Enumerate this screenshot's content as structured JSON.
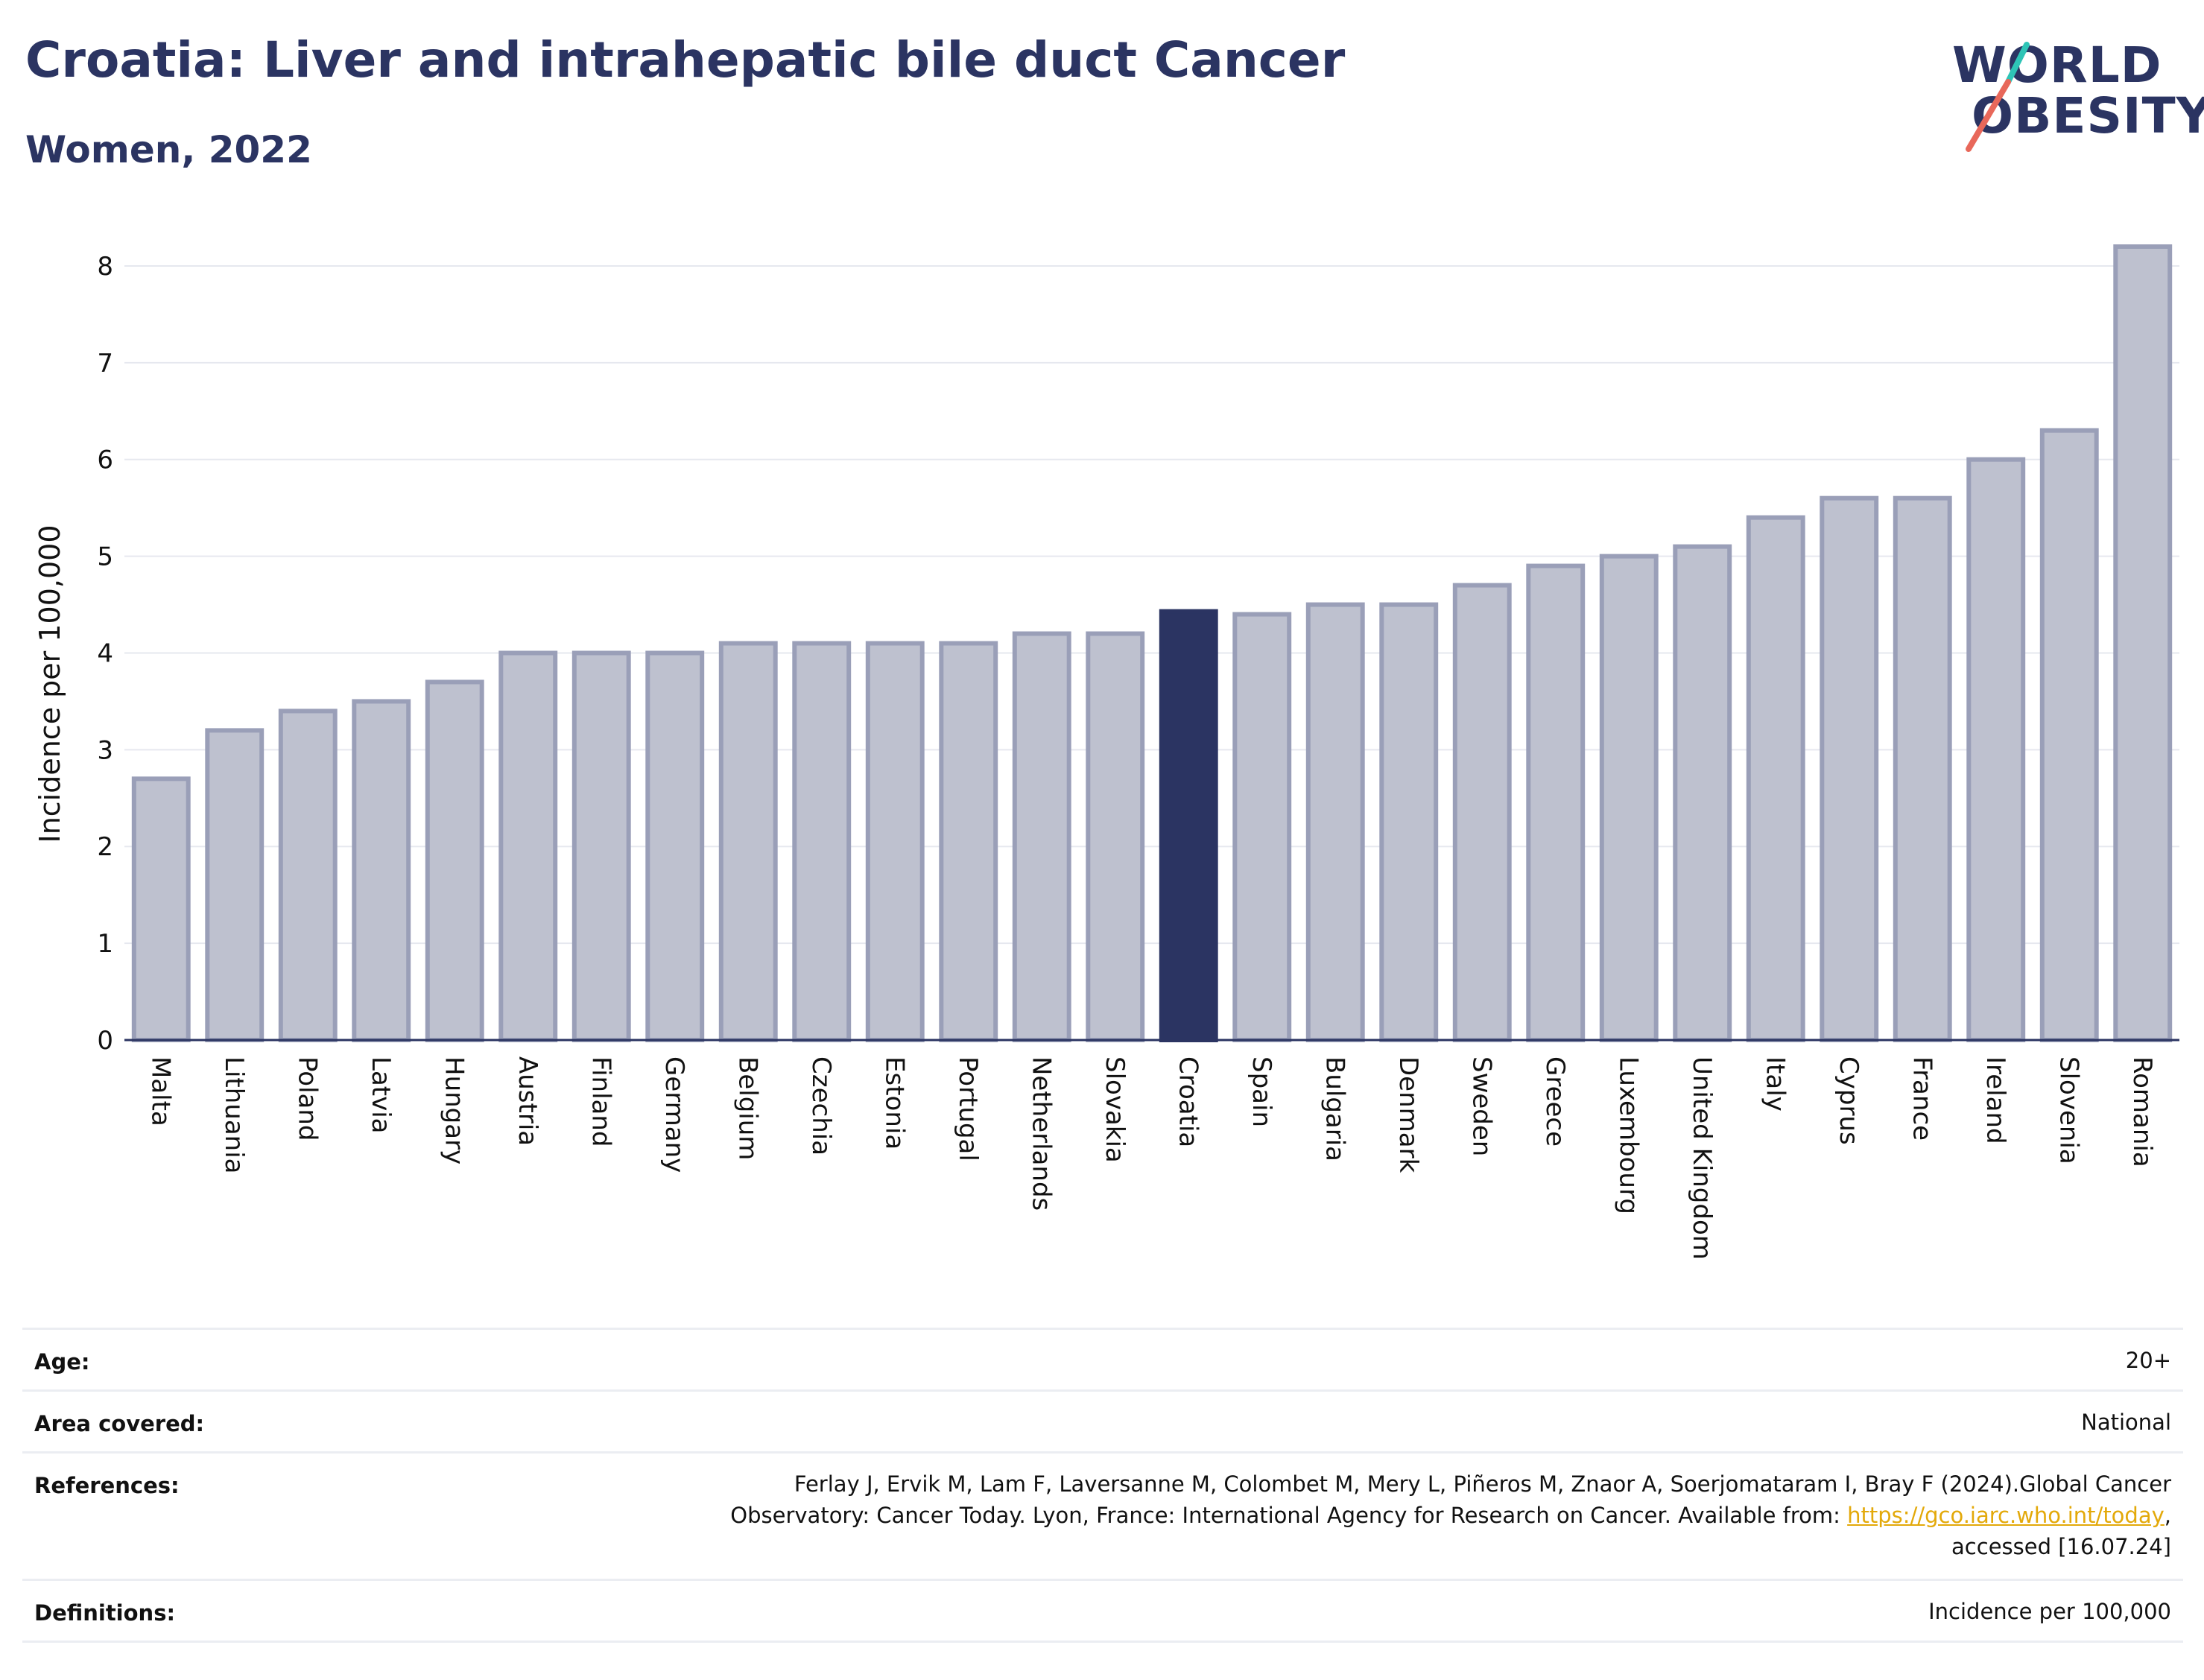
{
  "header": {
    "title": "Croatia: Liver and intrahepatic bile duct Cancer",
    "subtitle": "Women, 2022"
  },
  "logo": {
    "line1": "WORLD",
    "line2": "OBESITY",
    "slash_colors": [
      "#2ec4b6",
      "#e8685a"
    ]
  },
  "colors": {
    "highlight": "#2b3462",
    "bar": "#bec1cf",
    "bar_border": "#9a9fb8",
    "grid": "#e6e8ef",
    "axis": "#2b3462"
  },
  "chart_data": {
    "type": "bar",
    "title": "",
    "xlabel": "",
    "ylabel": "Incidence per 100,000",
    "ylim": [
      0,
      8.3
    ],
    "yticks": [
      0,
      1,
      2,
      3,
      4,
      5,
      6,
      7,
      8
    ],
    "grid": true,
    "highlight": "Croatia",
    "categories": [
      "Malta",
      "Lithuania",
      "Poland",
      "Latvia",
      "Hungary",
      "Austria",
      "Finland",
      "Germany",
      "Belgium",
      "Czechia",
      "Estonia",
      "Portugal",
      "Netherlands",
      "Slovakia",
      "Croatia",
      "Spain",
      "Bulgaria",
      "Denmark",
      "Sweden",
      "Greece",
      "Luxembourg",
      "United Kingdom",
      "Italy",
      "Cyprus",
      "France",
      "Ireland",
      "Slovenia",
      "Romania"
    ],
    "values": [
      2.7,
      3.2,
      3.4,
      3.5,
      3.7,
      4.0,
      4.0,
      4.0,
      4.1,
      4.1,
      4.1,
      4.1,
      4.2,
      4.2,
      4.43,
      4.4,
      4.5,
      4.5,
      4.7,
      4.9,
      5.0,
      5.1,
      5.4,
      5.6,
      5.6,
      6.0,
      6.3,
      8.2
    ]
  },
  "info": {
    "age_label": "Age:",
    "age_value": "20+",
    "area_label": "Area covered:",
    "area_value": "National",
    "references_label": "References:",
    "references_line1": "Ferlay J, Ervik M, Lam F, Laversanne M, Colombet M, Mery L, Piñeros M, Znaor A, Soerjomataram I, Bray F (2024).Global Cancer",
    "references_line2_pre": "Observatory: Cancer Today. Lyon, France: International Agency for Research on Cancer. Available from: ",
    "references_link": "https://gco.iarc.who.int/today",
    "references_line2_post": ",",
    "references_line3": "accessed [16.07.24]",
    "definitions_label": "Definitions:",
    "definitions_value": "Incidence per 100,000"
  }
}
